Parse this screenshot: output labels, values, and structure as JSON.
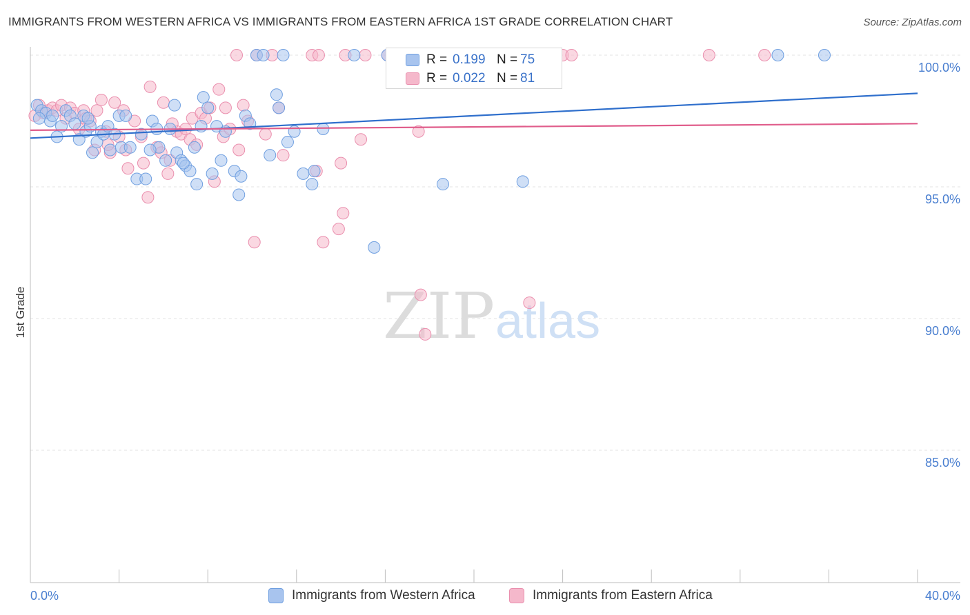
{
  "title": "IMMIGRANTS FROM WESTERN AFRICA VS IMMIGRANTS FROM EASTERN AFRICA 1ST GRADE CORRELATION CHART",
  "source": "Source: ZipAtlas.com",
  "colors": {
    "blue_fill": "#a8c4ee",
    "blue_stroke": "#6f9fe0",
    "blue_line": "#2f6fcc",
    "pink_fill": "#f5b8cb",
    "pink_stroke": "#ea8fae",
    "pink_line": "#e05d8b",
    "tick_text": "#4a7fd0"
  },
  "watermark": {
    "zip": "ZIP",
    "atlas": "atlas"
  },
  "legend": {
    "rows": [
      {
        "label": "R =",
        "r": "0.199",
        "n_label": "N =",
        "n": "75"
      },
      {
        "label": "R =",
        "r": "0.022",
        "n_label": "N =",
        "n": "81"
      }
    ]
  },
  "bottom_legend": [
    "Immigrants from Western Africa",
    "Immigrants from Eastern Africa"
  ],
  "chart_data": {
    "type": "scatter",
    "title": "IMMIGRANTS FROM WESTERN AFRICA VS IMMIGRANTS FROM EASTERN AFRICA 1ST GRADE CORRELATION CHART",
    "xlabel": "",
    "ylabel": "1st Grade",
    "xlim": [
      0,
      40
    ],
    "ylim": [
      80,
      100.4
    ],
    "x_tick_labels": [
      "0.0%",
      "40.0%"
    ],
    "y_ticks": [
      85,
      90,
      95,
      100
    ],
    "y_tick_labels": [
      "85.0%",
      "90.0%",
      "95.0%",
      "100.0%"
    ],
    "grid": true,
    "series": [
      {
        "name": "Immigrants from Western Africa",
        "color": "blue",
        "r": 0.199,
        "n": 75,
        "trend": [
          [
            0,
            96.85
          ],
          [
            40,
            98.55
          ]
        ],
        "points": [
          [
            0.3,
            98.1
          ],
          [
            0.5,
            97.9
          ],
          [
            0.7,
            97.8
          ],
          [
            0.9,
            97.5
          ],
          [
            1.2,
            96.9
          ],
          [
            1.4,
            97.3
          ],
          [
            1.6,
            97.9
          ],
          [
            1.8,
            97.7
          ],
          [
            2.0,
            97.4
          ],
          [
            2.2,
            96.8
          ],
          [
            2.4,
            97.7
          ],
          [
            2.5,
            97.1
          ],
          [
            2.7,
            97.3
          ],
          [
            2.8,
            96.3
          ],
          [
            3.0,
            96.7
          ],
          [
            3.2,
            97.1
          ],
          [
            3.3,
            97.0
          ],
          [
            3.5,
            97.3
          ],
          [
            3.6,
            96.4
          ],
          [
            3.8,
            97.0
          ],
          [
            4.0,
            97.7
          ],
          [
            4.1,
            96.5
          ],
          [
            4.3,
            97.7
          ],
          [
            4.5,
            96.5
          ],
          [
            4.8,
            95.3
          ],
          [
            5.0,
            97.0
          ],
          [
            5.2,
            95.3
          ],
          [
            5.5,
            97.5
          ],
          [
            5.7,
            97.2
          ],
          [
            5.8,
            96.5
          ],
          [
            6.1,
            96.0
          ],
          [
            6.3,
            97.2
          ],
          [
            6.5,
            98.1
          ],
          [
            6.6,
            96.3
          ],
          [
            6.8,
            96.0
          ],
          [
            7.0,
            95.8
          ],
          [
            7.2,
            95.6
          ],
          [
            7.4,
            96.5
          ],
          [
            7.5,
            95.1
          ],
          [
            7.7,
            97.3
          ],
          [
            7.8,
            98.4
          ],
          [
            8.0,
            98.0
          ],
          [
            8.2,
            95.5
          ],
          [
            8.4,
            97.3
          ],
          [
            8.6,
            96.0
          ],
          [
            8.8,
            97.1
          ],
          [
            9.2,
            95.6
          ],
          [
            9.4,
            94.7
          ],
          [
            9.5,
            95.4
          ],
          [
            9.7,
            97.7
          ],
          [
            9.9,
            97.4
          ],
          [
            10.2,
            100.0
          ],
          [
            10.5,
            100.0
          ],
          [
            10.8,
            96.2
          ],
          [
            11.1,
            98.5
          ],
          [
            11.2,
            98.0
          ],
          [
            11.4,
            100.0
          ],
          [
            11.6,
            96.7
          ],
          [
            11.9,
            97.1
          ],
          [
            12.3,
            95.5
          ],
          [
            12.7,
            95.1
          ],
          [
            12.8,
            95.6
          ],
          [
            13.2,
            97.2
          ],
          [
            14.6,
            100.0
          ],
          [
            15.5,
            92.7
          ],
          [
            16.1,
            100.0
          ],
          [
            18.6,
            95.1
          ],
          [
            22.2,
            95.2
          ],
          [
            33.7,
            100.0
          ],
          [
            35.8,
            100.0
          ],
          [
            0.4,
            97.6
          ],
          [
            1.0,
            97.7
          ],
          [
            2.6,
            97.6
          ],
          [
            5.4,
            96.4
          ],
          [
            6.9,
            95.9
          ]
        ]
      },
      {
        "name": "Immigrants from Eastern Africa",
        "color": "pink",
        "r": 0.022,
        "n": 81,
        "trend": [
          [
            0,
            97.15
          ],
          [
            40,
            97.4
          ]
        ],
        "points": [
          [
            0.2,
            97.7
          ],
          [
            0.4,
            98.1
          ],
          [
            0.6,
            97.8
          ],
          [
            0.8,
            97.9
          ],
          [
            1.0,
            98.0
          ],
          [
            1.2,
            97.9
          ],
          [
            1.4,
            98.1
          ],
          [
            1.6,
            97.6
          ],
          [
            1.8,
            98.0
          ],
          [
            2.0,
            97.8
          ],
          [
            2.2,
            97.2
          ],
          [
            2.4,
            97.9
          ],
          [
            2.5,
            97.6
          ],
          [
            2.7,
            97.5
          ],
          [
            2.9,
            96.4
          ],
          [
            3.0,
            97.9
          ],
          [
            3.2,
            98.3
          ],
          [
            3.4,
            97.1
          ],
          [
            3.6,
            96.3
          ],
          [
            3.8,
            98.2
          ],
          [
            4.0,
            96.9
          ],
          [
            4.2,
            97.9
          ],
          [
            4.3,
            96.4
          ],
          [
            4.4,
            95.7
          ],
          [
            4.7,
            97.5
          ],
          [
            5.0,
            96.9
          ],
          [
            5.1,
            95.9
          ],
          [
            5.3,
            94.6
          ],
          [
            5.4,
            98.8
          ],
          [
            5.7,
            96.5
          ],
          [
            5.9,
            96.3
          ],
          [
            6.0,
            98.2
          ],
          [
            6.2,
            95.5
          ],
          [
            6.3,
            96.0
          ],
          [
            6.6,
            97.1
          ],
          [
            6.8,
            97.0
          ],
          [
            7.0,
            97.2
          ],
          [
            7.2,
            96.8
          ],
          [
            7.3,
            97.6
          ],
          [
            7.5,
            96.6
          ],
          [
            7.7,
            97.8
          ],
          [
            7.9,
            97.6
          ],
          [
            8.1,
            98.0
          ],
          [
            8.3,
            95.2
          ],
          [
            8.5,
            98.7
          ],
          [
            8.7,
            96.9
          ],
          [
            8.8,
            98.0
          ],
          [
            9.0,
            97.2
          ],
          [
            9.3,
            100.0
          ],
          [
            9.4,
            96.4
          ],
          [
            9.6,
            98.1
          ],
          [
            9.8,
            97.5
          ],
          [
            10.1,
            92.9
          ],
          [
            10.2,
            100.0
          ],
          [
            10.6,
            97.0
          ],
          [
            10.9,
            100.0
          ],
          [
            11.2,
            98.0
          ],
          [
            11.4,
            96.2
          ],
          [
            12.7,
            100.0
          ],
          [
            12.9,
            95.6
          ],
          [
            13.0,
            100.0
          ],
          [
            13.2,
            92.9
          ],
          [
            13.9,
            93.4
          ],
          [
            14.1,
            94.0
          ],
          [
            14.0,
            95.9
          ],
          [
            14.9,
            96.8
          ],
          [
            15.1,
            100.0
          ],
          [
            16.1,
            100.0
          ],
          [
            17.1,
            100.0
          ],
          [
            17.5,
            97.1
          ],
          [
            17.6,
            90.9
          ],
          [
            17.8,
            89.4
          ],
          [
            22.5,
            90.6
          ],
          [
            23.3,
            100.0
          ],
          [
            24.0,
            100.0
          ],
          [
            24.4,
            100.0
          ],
          [
            30.6,
            100.0
          ],
          [
            33.1,
            100.0
          ],
          [
            14.2,
            100.0
          ],
          [
            3.5,
            96.6
          ],
          [
            6.4,
            97.4
          ]
        ]
      }
    ]
  }
}
